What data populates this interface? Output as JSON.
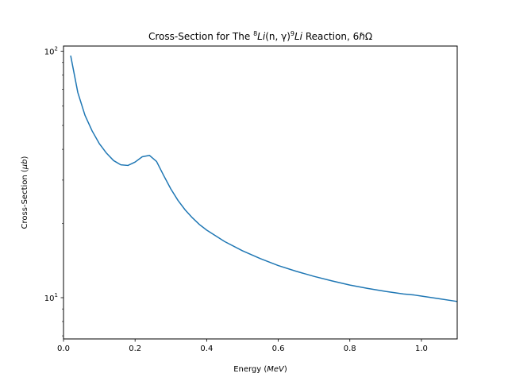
{
  "chart_data": {
    "type": "line",
    "title": {
      "prefix": "Cross-Section for The ",
      "sup1": "8",
      "italic1": "Li",
      "mid": "(n, γ)",
      "sup2": "9",
      "italic2": "Li",
      "suffix": " Reaction, 6ℏΩ"
    },
    "xlabel": {
      "text": "Energy (",
      "unit": "MeV",
      "close": ")"
    },
    "ylabel": {
      "text": "Cross-Section (",
      "unit": "μb",
      "close": ")"
    },
    "xlim": [
      0.0,
      1.1
    ],
    "ylim": [
      6.8,
      105
    ],
    "yscale": "log",
    "grid": false,
    "x_ticks": [
      0.0,
      0.2,
      0.4,
      0.6,
      0.8,
      1.0
    ],
    "x_tick_labels": [
      "0.0",
      "0.2",
      "0.4",
      "0.6",
      "0.8",
      "1.0"
    ],
    "y_major_ticks": [
      10,
      100
    ],
    "y_tick_labels": [
      {
        "base": "10",
        "exp": "1"
      },
      {
        "base": "10",
        "exp": "2"
      }
    ],
    "y_minor_ticks": [
      7,
      8,
      9,
      20,
      30,
      40,
      50,
      60,
      70,
      80,
      90
    ],
    "line_color": "#1f77b4",
    "series": [
      {
        "x": [
          0.02,
          0.04,
          0.06,
          0.08,
          0.1,
          0.12,
          0.14,
          0.16,
          0.18,
          0.2,
          0.22,
          0.24,
          0.26,
          0.28,
          0.3,
          0.32,
          0.34,
          0.36,
          0.38,
          0.4,
          0.45,
          0.5,
          0.55,
          0.6,
          0.65,
          0.7,
          0.75,
          0.8,
          0.85,
          0.9,
          0.95,
          0.98,
          1.0,
          1.05,
          1.1
        ],
        "y": [
          96,
          68,
          55,
          47.5,
          42.2,
          38.6,
          36.0,
          34.6,
          34.4,
          35.5,
          37.3,
          37.8,
          35.7,
          31.3,
          27.6,
          24.8,
          22.7,
          21.1,
          19.8,
          18.8,
          16.9,
          15.5,
          14.4,
          13.5,
          12.8,
          12.2,
          11.7,
          11.25,
          10.9,
          10.6,
          10.35,
          10.25,
          10.15,
          9.9,
          9.65
        ]
      }
    ]
  }
}
